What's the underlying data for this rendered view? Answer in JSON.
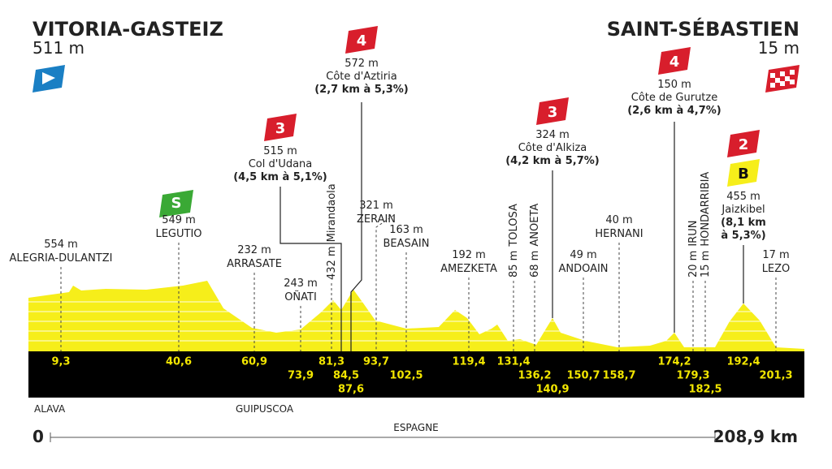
{
  "start": {
    "name": "VITORIA-GASTEIZ",
    "elevation": "511 m",
    "km": "0"
  },
  "finish": {
    "name": "SAINT-SÉBASTIEN",
    "elevation": "15 m",
    "km": "208,9 km"
  },
  "climbs": [
    {
      "category": "3",
      "elevation": "515 m",
      "name": "Col d'Udana",
      "stats": "(4,5 km à 5,1%)",
      "km": "84,5"
    },
    {
      "category": "4",
      "elevation": "572 m",
      "name": "Côte d'Aztiria",
      "stats": "(2,7 km à 5,3%)",
      "km": "87,6"
    },
    {
      "category": "3",
      "elevation": "324 m",
      "name": "Côte d'Alkiza",
      "stats": "(4,2 km à 5,7%)",
      "km": "140,9"
    },
    {
      "category": "4",
      "elevation": "150 m",
      "name": "Côte de Gurutze",
      "stats": "(2,6 km à 4,7%)",
      "km": "174,2"
    },
    {
      "category": "2",
      "bonus": "B",
      "elevation": "455 m",
      "name": "Jaizkibel",
      "stats": [
        "(8,1 km",
        "à 5,3%)"
      ],
      "km": "192,4"
    }
  ],
  "sprint": {
    "icon": "S"
  },
  "places": [
    {
      "elevation": "554 m",
      "name": "ALEGRIA-DULANTZI",
      "km": "9,3"
    },
    {
      "elevation": "549 m",
      "name": "LEGUTIO",
      "km": "40,6"
    },
    {
      "elevation": "232 m",
      "name": "ARRASATE",
      "km": "60,9"
    },
    {
      "elevation": "243 m",
      "name": "OÑATI",
      "km": "73,9"
    },
    {
      "elevation": "432 m",
      "name": "Mirandaola",
      "km": "81,3"
    },
    {
      "elevation": "321 m",
      "name": "ZERAIN",
      "km": "93,7"
    },
    {
      "elevation": "163 m",
      "name": "BEASAIN",
      "km": "102,5"
    },
    {
      "elevation": "192 m",
      "name": "AMEZKETA",
      "km": "119,4"
    },
    {
      "elevation": "85 m",
      "name": "TOLOSA",
      "km": "131,4"
    },
    {
      "elevation": "68 m",
      "name": "ANOETA",
      "km": "136,2"
    },
    {
      "elevation": "49 m",
      "name": "ANDOAIN",
      "km": "150,7"
    },
    {
      "elevation": "40 m",
      "name": "HERNANI",
      "km": "158,7"
    },
    {
      "elevation": "20 m",
      "name": "IRUN",
      "km": "179,3"
    },
    {
      "elevation": "15 m",
      "name": "HONDARRIBIA",
      "km": "182,5"
    },
    {
      "elevation": "17 m",
      "name": "LEZO",
      "km": "201,3"
    }
  ],
  "regions": [
    "ALAVA",
    "GUIPUSCOA"
  ],
  "country": "ESPAGNE"
}
